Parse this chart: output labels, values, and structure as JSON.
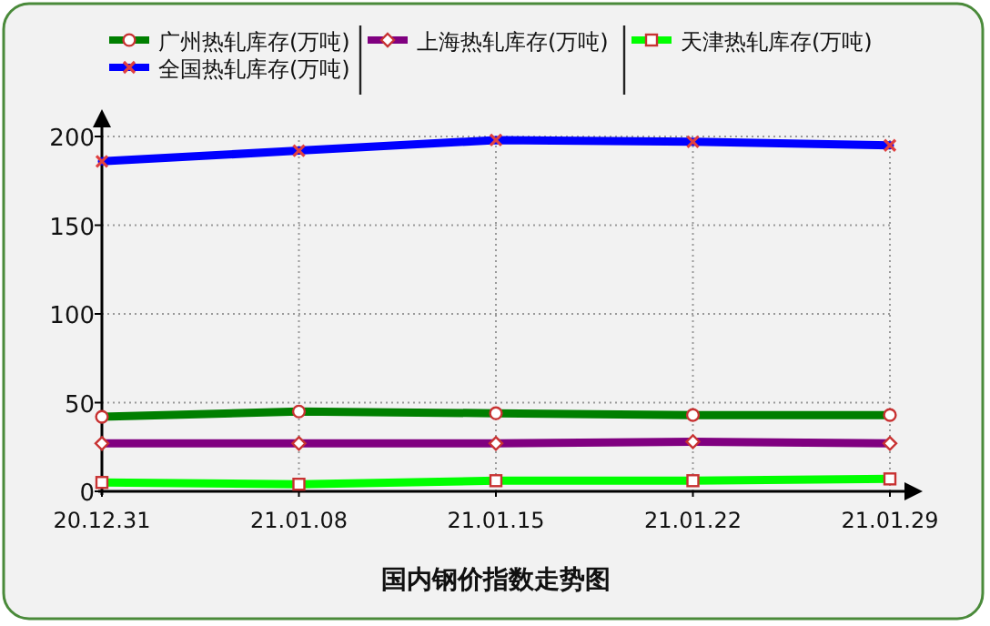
{
  "chart_data": {
    "type": "line",
    "title": "国内钢价指数走势图",
    "categories": [
      "20.12.31",
      "21.01.08",
      "21.01.15",
      "21.01.22",
      "21.01.29"
    ],
    "series": [
      {
        "name": "广州热轧库存(万吨)",
        "color": "#007f00",
        "marker": "circle",
        "values": [
          42,
          45,
          44,
          43,
          43
        ]
      },
      {
        "name": "上海热轧库存(万吨)",
        "color": "#800080",
        "marker": "diamond",
        "values": [
          27,
          27,
          27,
          28,
          27
        ]
      },
      {
        "name": "天津热轧库存(万吨)",
        "color": "#00ff00",
        "marker": "square",
        "values": [
          5,
          4,
          6,
          6,
          7
        ]
      },
      {
        "name": "全国热轧库存(万吨)",
        "color": "#0000ff",
        "marker": "cross",
        "values": [
          186,
          192,
          198,
          197,
          195
        ]
      }
    ],
    "ylim": [
      0,
      200
    ],
    "yticks": [
      0,
      50,
      100,
      150,
      200
    ],
    "grid": true,
    "legend": "top",
    "line_style": "solid"
  }
}
